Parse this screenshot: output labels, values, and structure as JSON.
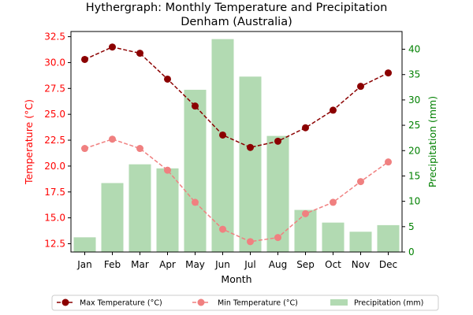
{
  "chart_data": {
    "type": "line+bar",
    "title": "Hythergraph: Monthly Temperature and Precipitation",
    "subtitle": "Denham (Australia)",
    "xlabel": "Month",
    "ylabel_left": "Temperature (°C)",
    "ylabel_right": "Precipitation (mm)",
    "categories": [
      "Jan",
      "Feb",
      "Mar",
      "Apr",
      "May",
      "Jun",
      "Jul",
      "Aug",
      "Sep",
      "Oct",
      "Nov",
      "Dec"
    ],
    "ylim_left": [
      11.7,
      33.0
    ],
    "yticks_left": [
      "12.5",
      "15.0",
      "17.5",
      "20.0",
      "22.5",
      "25.0",
      "27.5",
      "30.0",
      "32.5"
    ],
    "ylim_right": [
      0,
      43.5
    ],
    "yticks_right": [
      "0",
      "5",
      "10",
      "15",
      "20",
      "25",
      "30",
      "35",
      "40"
    ],
    "grid": false,
    "legend_position": "bottom-center",
    "series": [
      {
        "name": "Max Temperature (°C)",
        "axis": "left",
        "kind": "line",
        "color": "#8b0000",
        "values": [
          30.3,
          31.5,
          30.9,
          28.4,
          25.8,
          23.0,
          21.8,
          22.4,
          23.7,
          25.4,
          27.7,
          29.0
        ]
      },
      {
        "name": "Min Temperature (°C)",
        "axis": "left",
        "kind": "line",
        "color": "#f08080",
        "values": [
          21.7,
          22.6,
          21.7,
          19.6,
          16.5,
          13.9,
          12.7,
          13.1,
          15.4,
          16.5,
          18.5,
          20.4
        ]
      },
      {
        "name": "Precipitation (mm)",
        "axis": "right",
        "kind": "bar",
        "color": "#b2dab2",
        "values": [
          2.9,
          13.6,
          17.3,
          16.5,
          32.0,
          42.0,
          34.6,
          22.9,
          8.3,
          5.8,
          4.0,
          5.3
        ]
      }
    ],
    "colors": {
      "left_axis": "#ff0000",
      "right_axis": "#008000"
    }
  }
}
